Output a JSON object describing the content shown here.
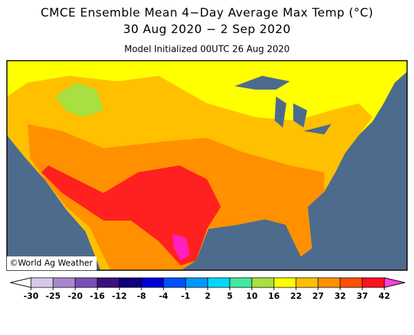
{
  "map": {
    "title": "CMCE Ensemble Mean 4−Day Average Max Temp (°C)",
    "date_range": "30 Aug 2020 − 2 Sep 2020",
    "subtitle": "Model Initialized 00UTC 26 Aug 2020",
    "credit": "©World Ag Weather",
    "colorbar": {
      "ticks": [
        -30,
        -25,
        -20,
        -16,
        -12,
        -8,
        -4,
        -1,
        2,
        5,
        10,
        16,
        22,
        27,
        32,
        37,
        42
      ],
      "colors": [
        "#d8c8e8",
        "#a888cc",
        "#7850b8",
        "#3c1080",
        "#10007a",
        "#0000d8",
        "#0050ff",
        "#0098ff",
        "#00d8f8",
        "#40e8a0",
        "#a8e040",
        "#ffff00",
        "#ffc000",
        "#ff9000",
        "#ff5000",
        "#ff1020"
      ],
      "low_color": "#ffffff",
      "high_color": "#ff40d8"
    }
  }
}
